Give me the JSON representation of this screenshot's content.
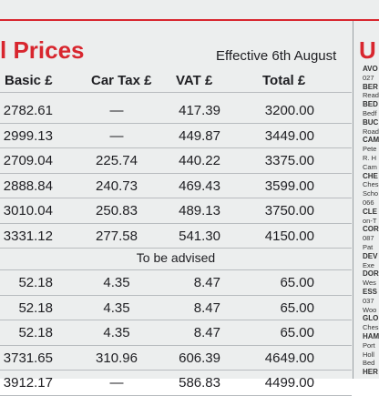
{
  "header": {
    "title": "l Prices",
    "effective": "Effective 6th August"
  },
  "table": {
    "columns": [
      "Basic £",
      "Car Tax £",
      "VAT £",
      "Total £"
    ],
    "groups": [
      {
        "rows": [
          [
            "2782.61",
            "—",
            "417.39",
            "3200.00"
          ],
          [
            "2999.13",
            "—",
            "449.87",
            "3449.00"
          ],
          [
            "2709.04",
            "225.74",
            "440.22",
            "3375.00"
          ],
          [
            "2888.84",
            "240.73",
            "469.43",
            "3599.00"
          ],
          [
            "3010.04",
            "250.83",
            "489.13",
            "3750.00"
          ],
          [
            "3331.12",
            "277.58",
            "541.30",
            "4150.00"
          ]
        ]
      },
      {
        "heading": "To be advised",
        "rows": [
          [
            "52.18",
            "4.35",
            "8.47",
            "65.00"
          ],
          [
            "52.18",
            "4.35",
            "8.47",
            "65.00"
          ],
          [
            "52.18",
            "4.35",
            "8.47",
            "65.00"
          ],
          [
            "3731.65",
            "310.96",
            "606.39",
            "4649.00"
          ],
          [
            "3912.17",
            "—",
            "586.83",
            "4499.00"
          ]
        ]
      }
    ]
  },
  "sidebar": {
    "title": "U",
    "lines": [
      "AVO",
      "027",
      "BER",
      "Read",
      "BED",
      "Bedf",
      "BUC",
      "Road",
      "CAM",
      "Pete",
      "R. H",
      "Cam",
      "CHE",
      "Ches",
      "Scho",
      "066",
      "CLE",
      "on-T",
      "COR",
      "087",
      "Pat",
      "DEV",
      "Exe",
      "DOR",
      "Wes",
      "ESS",
      "037",
      "Woo",
      "GLO",
      "Ches",
      "HAM",
      "Port",
      "Holl",
      "Bed",
      "HER"
    ]
  }
}
